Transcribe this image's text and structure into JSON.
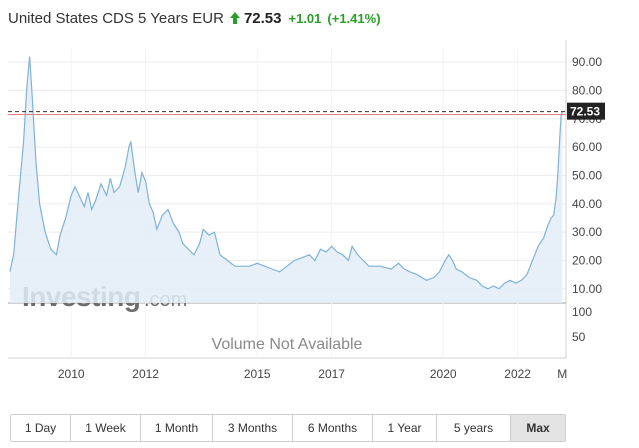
{
  "header": {
    "title": "United States CDS 5 Years EUR",
    "price": "72.53",
    "change": "+1.01",
    "change_pct": "(+1.41%)",
    "trend_icon": "up-arrow-icon",
    "up_color": "#2a9e2a"
  },
  "watermark": {
    "main": "Investing",
    "suffix": ".com"
  },
  "volume_label": "Volume Not Available",
  "current_value_label": "72.53",
  "range_buttons": [
    "1 Day",
    "1 Week",
    "1 Month",
    "3 Months",
    "6 Months",
    "1 Year",
    "5 years",
    "Max"
  ],
  "active_range": "Max",
  "chart_data": {
    "type": "area",
    "title": "United States CDS 5 Years EUR",
    "xlabel": "",
    "ylabel": "",
    "x_tick_labels": [
      "2010",
      "2012",
      "2015",
      "2017",
      "2020",
      "2022",
      "M"
    ],
    "x_tick_positions": [
      2010,
      2012,
      2015,
      2017,
      2020,
      2022,
      2023.2
    ],
    "y_ticks": [
      "90.00",
      "80.00",
      "70.00",
      "60.00",
      "50.00",
      "40.00",
      "30.00",
      "20.00",
      "10.00"
    ],
    "y_tick_values": [
      90,
      80,
      70,
      60,
      50,
      40,
      30,
      20,
      10
    ],
    "ylim": [
      5,
      95
    ],
    "xlim": [
      2008.3,
      2023.3
    ],
    "volume_axis_ticks": [
      "100",
      "50"
    ],
    "current_value": 72.53,
    "current_line_color": "#333333",
    "previous_close_line_color": "#e08080",
    "line_color": "#7fb2d8",
    "fill_color": "#e3edf7",
    "grid": true,
    "legend": "none",
    "series": [
      {
        "values": [
          [
            2008.35,
            16
          ],
          [
            2008.45,
            22
          ],
          [
            2008.6,
            45
          ],
          [
            2008.72,
            62
          ],
          [
            2008.8,
            80
          ],
          [
            2008.88,
            92
          ],
          [
            2008.95,
            78
          ],
          [
            2009.05,
            55
          ],
          [
            2009.15,
            40
          ],
          [
            2009.3,
            30
          ],
          [
            2009.45,
            24
          ],
          [
            2009.6,
            22
          ],
          [
            2009.7,
            29
          ],
          [
            2009.85,
            35
          ],
          [
            2010.0,
            43
          ],
          [
            2010.1,
            46
          ],
          [
            2010.25,
            42
          ],
          [
            2010.35,
            39
          ],
          [
            2010.45,
            44
          ],
          [
            2010.55,
            38
          ],
          [
            2010.65,
            41
          ],
          [
            2010.8,
            47
          ],
          [
            2010.95,
            43
          ],
          [
            2011.05,
            49
          ],
          [
            2011.15,
            44
          ],
          [
            2011.3,
            46
          ],
          [
            2011.45,
            53
          ],
          [
            2011.55,
            60
          ],
          [
            2011.6,
            62
          ],
          [
            2011.7,
            52
          ],
          [
            2011.8,
            44
          ],
          [
            2011.9,
            51
          ],
          [
            2012.0,
            48
          ],
          [
            2012.1,
            40
          ],
          [
            2012.2,
            37
          ],
          [
            2012.3,
            31
          ],
          [
            2012.45,
            36
          ],
          [
            2012.6,
            38
          ],
          [
            2012.75,
            33
          ],
          [
            2012.9,
            30
          ],
          [
            2013.0,
            26
          ],
          [
            2013.15,
            24
          ],
          [
            2013.3,
            22
          ],
          [
            2013.45,
            26
          ],
          [
            2013.55,
            31
          ],
          [
            2013.7,
            29
          ],
          [
            2013.85,
            30
          ],
          [
            2014.0,
            22
          ],
          [
            2014.2,
            20
          ],
          [
            2014.4,
            18
          ],
          [
            2014.6,
            18
          ],
          [
            2014.8,
            18
          ],
          [
            2015.0,
            19
          ],
          [
            2015.2,
            18
          ],
          [
            2015.4,
            17
          ],
          [
            2015.6,
            16
          ],
          [
            2015.8,
            18
          ],
          [
            2016.0,
            20
          ],
          [
            2016.2,
            21
          ],
          [
            2016.4,
            22
          ],
          [
            2016.55,
            20
          ],
          [
            2016.7,
            24
          ],
          [
            2016.85,
            23
          ],
          [
            2017.0,
            25
          ],
          [
            2017.15,
            23
          ],
          [
            2017.3,
            22
          ],
          [
            2017.45,
            20
          ],
          [
            2017.55,
            25
          ],
          [
            2017.7,
            22
          ],
          [
            2017.85,
            20
          ],
          [
            2018.0,
            18
          ],
          [
            2018.3,
            18
          ],
          [
            2018.6,
            17
          ],
          [
            2018.8,
            19
          ],
          [
            2018.95,
            17
          ],
          [
            2019.1,
            16
          ],
          [
            2019.3,
            15
          ],
          [
            2019.55,
            13
          ],
          [
            2019.75,
            14
          ],
          [
            2019.9,
            16
          ],
          [
            2020.05,
            20
          ],
          [
            2020.15,
            22
          ],
          [
            2020.25,
            20
          ],
          [
            2020.35,
            17
          ],
          [
            2020.5,
            16
          ],
          [
            2020.7,
            14
          ],
          [
            2020.9,
            13
          ],
          [
            2021.05,
            11
          ],
          [
            2021.2,
            10
          ],
          [
            2021.35,
            11
          ],
          [
            2021.5,
            10
          ],
          [
            2021.65,
            12
          ],
          [
            2021.8,
            13
          ],
          [
            2021.95,
            12
          ],
          [
            2022.1,
            13
          ],
          [
            2022.25,
            15
          ],
          [
            2022.4,
            20
          ],
          [
            2022.55,
            25
          ],
          [
            2022.7,
            28
          ],
          [
            2022.8,
            32
          ],
          [
            2022.9,
            35
          ],
          [
            2022.97,
            36
          ],
          [
            2023.03,
            42
          ],
          [
            2023.08,
            50
          ],
          [
            2023.13,
            63
          ],
          [
            2023.17,
            71.52
          ],
          [
            2023.2,
            72.53
          ]
        ]
      }
    ]
  }
}
